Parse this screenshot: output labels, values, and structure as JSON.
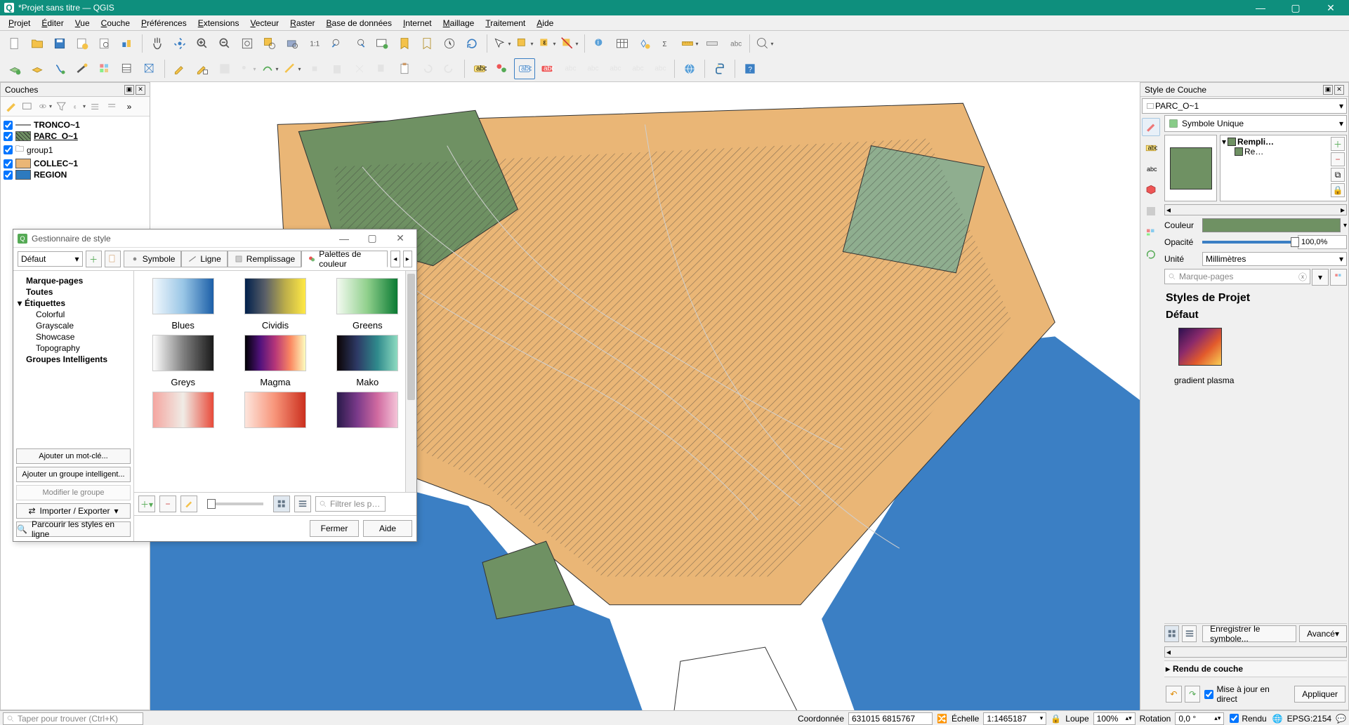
{
  "window": {
    "title": "*Projet sans titre — QGIS",
    "app_glyph": "Q"
  },
  "menu": [
    "Projet",
    "Éditer",
    "Vue",
    "Couche",
    "Préférences",
    "Extensions",
    "Vecteur",
    "Raster",
    "Base de données",
    "Internet",
    "Maillage",
    "Traitement",
    "Aide"
  ],
  "layers_panel": {
    "title": "Couches",
    "items": [
      {
        "checked": true,
        "type": "line",
        "label": "TRONCO~1",
        "color": "#888888",
        "bold": true
      },
      {
        "checked": true,
        "type": "poly",
        "label": "PARC_O~1",
        "color": "#6f9163",
        "hatched": true,
        "bold": true,
        "underline": true
      },
      {
        "checked": true,
        "type": "group",
        "label": "group1"
      },
      {
        "checked": true,
        "type": "poly",
        "label": "COLLEC~1",
        "color": "#eab676",
        "bold": true
      },
      {
        "checked": true,
        "type": "poly",
        "label": "REGION",
        "color": "#2d7abf",
        "bold": true
      }
    ]
  },
  "style_panel": {
    "title": "Style de Couche",
    "layer_select": "PARC_O~1",
    "symbol_type": "Symbole Unique",
    "tree": {
      "root": "Rempli…",
      "child": "Re…"
    },
    "color_label": "Couleur",
    "color": "#6f9163",
    "opacity_label": "Opacité",
    "opacity_value": "100,0%",
    "unit_label": "Unité",
    "unit_value": "Millimètres",
    "search_placeholder": "Marque-pages",
    "project_styles_title": "Styles de Projet",
    "default_label": "Défaut",
    "gradient_label": "gradient   plasma",
    "view_buttons_tooltip": "grid/list",
    "save_symbol_label": "Enregistrer le symbole...",
    "advanced_label": "Avancé",
    "render_section": "Rendu de couche",
    "live_update_label": "Mise à jour en direct",
    "apply_label": "Appliquer"
  },
  "statusbar": {
    "search_placeholder": "Taper pour trouver (Ctrl+K)",
    "coord_label": "Coordonnée",
    "coord_value": "631015 6815767",
    "scale_label": "Échelle",
    "scale_value": "1:1465187",
    "lock_icon": "lock",
    "loupe_label": "Loupe",
    "loupe_value": "100%",
    "rotation_label": "Rotation",
    "rotation_value": "0,0 °",
    "render_label": "Rendu",
    "crs_label": "EPSG:2154"
  },
  "style_manager": {
    "title": "Gestionnaire de style",
    "default_combo": "Défaut",
    "tabs": [
      {
        "icon": "marker",
        "label": "Symbole"
      },
      {
        "icon": "line",
        "label": "Ligne"
      },
      {
        "icon": "fill",
        "label": "Remplissage"
      },
      {
        "icon": "ramp",
        "label": "Palettes de couleur",
        "active": true
      }
    ],
    "tree": [
      {
        "label": "Marque-pages",
        "bold": true,
        "indent": 1
      },
      {
        "label": "Toutes",
        "bold": true,
        "indent": 1
      },
      {
        "label": "Étiquettes",
        "bold": true,
        "indent": 1,
        "expander": "▾"
      },
      {
        "label": "Colorful",
        "indent": 2
      },
      {
        "label": "Grayscale",
        "indent": 2
      },
      {
        "label": "Showcase",
        "indent": 2
      },
      {
        "label": "Topography",
        "indent": 2
      },
      {
        "label": "Groupes Intelligents",
        "bold": true,
        "indent": 1
      }
    ],
    "left_buttons": [
      "Ajouter un mot-clé...",
      "Ajouter un groupe intelligent...",
      "Modifier le groupe",
      "Importer / Exporter"
    ],
    "palettes": [
      {
        "name": "Blues",
        "gradient": "linear-gradient(90deg,#f2f8fd,#99c6e6,#1c5fa8)"
      },
      {
        "name": "Cividis",
        "gradient": "linear-gradient(90deg,#00204c,#5a5f68,#bdae4a,#ffe945)"
      },
      {
        "name": "Greens",
        "gradient": "linear-gradient(90deg,#f3faf1,#90d08c,#0a7a33)"
      },
      {
        "name": "Greys",
        "gradient": "linear-gradient(90deg,#ffffff,#808080,#1a1a1a)"
      },
      {
        "name": "Magma",
        "gradient": "linear-gradient(90deg,#000004,#51127c,#b63679,#fb8861,#fcfdbf)"
      },
      {
        "name": "Mako",
        "gradient": "linear-gradient(90deg,#0b0405,#2e3a66,#2f8a8c,#8edbc0)"
      },
      {
        "name": "",
        "gradient": "linear-gradient(90deg,#f4a6a0,#f0ece6,#e84a3a)"
      },
      {
        "name": "",
        "gradient": "linear-gradient(90deg,#fde5dc,#f79378,#cb2f1e)"
      },
      {
        "name": "",
        "gradient": "linear-gradient(90deg,#2a1a4a,#7a3a8a,#d06aa0,#f4c4d8)"
      }
    ],
    "filter_placeholder": "Filtrer les p…",
    "close_label": "Fermer",
    "help_label": "Aide",
    "browse_label": "Parcourir les styles en ligne"
  },
  "map": {
    "colors": {
      "water": "#3b7fc4",
      "land": "#eab676",
      "park": "#6f9163",
      "background": "#ffffff"
    }
  }
}
